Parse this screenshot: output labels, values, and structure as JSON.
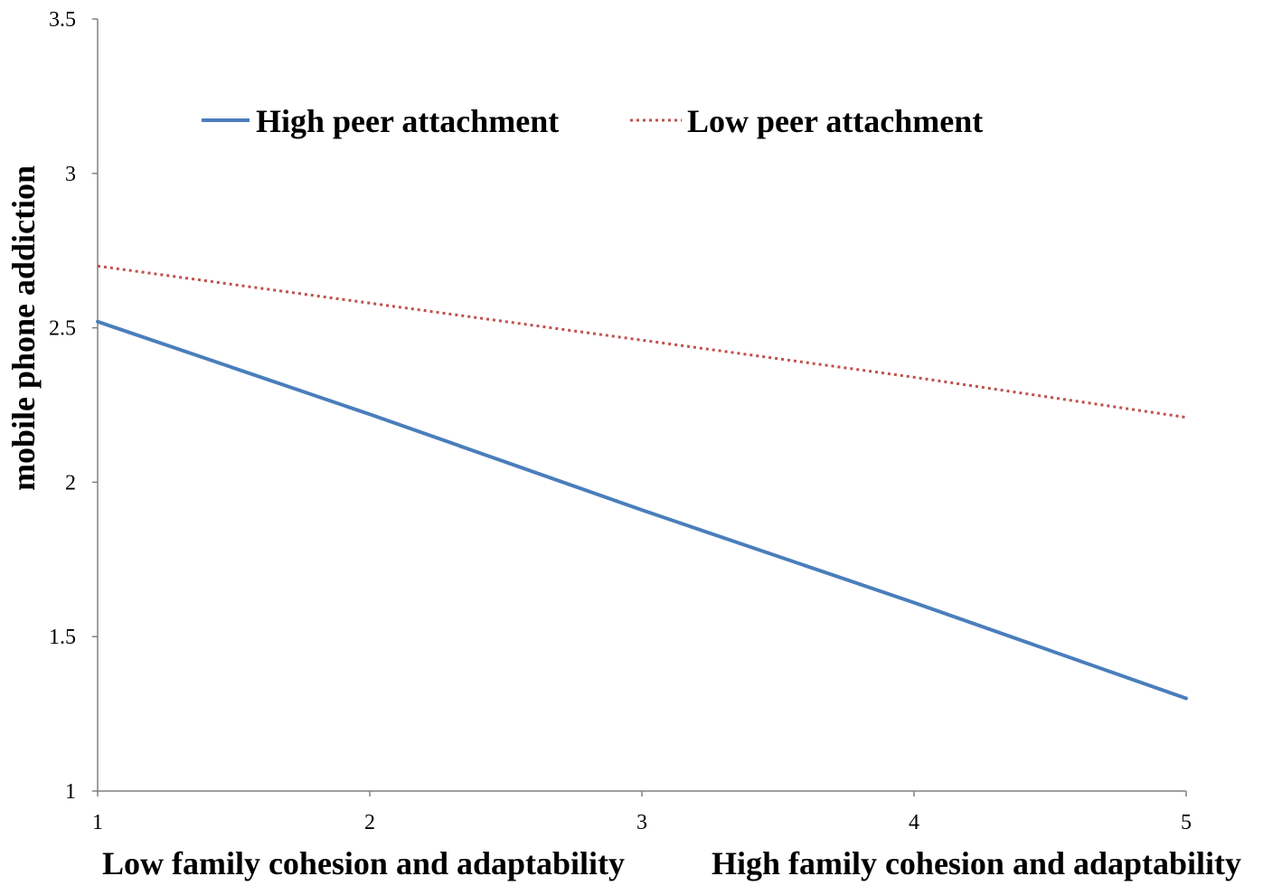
{
  "chart_data": {
    "type": "line",
    "x": [
      1,
      2,
      3,
      4,
      5
    ],
    "xlim": [
      1,
      5
    ],
    "ylim": [
      1,
      3.5
    ],
    "xticks": [
      "1",
      "2",
      "3",
      "4",
      "5"
    ],
    "yticks": [
      "1",
      "1.5",
      "2",
      "2.5",
      "3",
      "3.5"
    ],
    "ylabel": "mobile phone addiction",
    "xlabel_left": "Low family cohesion and adaptability",
    "xlabel_right": "High family cohesion and adaptability",
    "grid": false,
    "legend_position": "top",
    "series": [
      {
        "name": "High peer attachment",
        "color": "#4a7ebb",
        "style": "solid",
        "values": [
          2.52,
          2.22,
          1.91,
          1.61,
          1.3
        ]
      },
      {
        "name": "Low peer attachment",
        "color": "#c0504d",
        "style": "dotted",
        "values": [
          2.7,
          2.58,
          2.46,
          2.34,
          2.21
        ]
      }
    ]
  }
}
